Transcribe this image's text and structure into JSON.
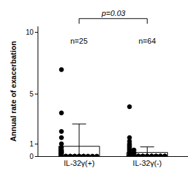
{
  "chart_data": {
    "type": "bar",
    "y_label": "Annual rate of exacerbation",
    "categories": [
      "IL-32γ(+)",
      "IL-32γ(-)"
    ],
    "values": [
      0.8,
      0.3
    ],
    "error": [
      1.8,
      0.45
    ],
    "points": [
      [
        7,
        3.5,
        2,
        1.5,
        1,
        0.7,
        0.5,
        0.4,
        0.3,
        0.2,
        0,
        0,
        0,
        0,
        0,
        0,
        0,
        0,
        0,
        0,
        0,
        0,
        0,
        0,
        0
      ],
      [
        4,
        1.5,
        1.2,
        1,
        0.9,
        0.8,
        0.7,
        0.6,
        0.5,
        0.5,
        0.4,
        0.3,
        0.3,
        0.2,
        0.2,
        0.1,
        0,
        0,
        0,
        0,
        0,
        0,
        0,
        0,
        0,
        0,
        0,
        0,
        0,
        0,
        0,
        0,
        0,
        0,
        0,
        0,
        0,
        0,
        0,
        0,
        0,
        0,
        0,
        0,
        0,
        0,
        0,
        0,
        0,
        0,
        0,
        0,
        0,
        0,
        0,
        0,
        0,
        0,
        0,
        0,
        0,
        0,
        0,
        0
      ]
    ],
    "annotations": {
      "comparison": "p=0.03",
      "groups": [
        "n=25",
        "n=64"
      ]
    },
    "color": "#ffffff",
    "marker": "triangle-open",
    "ylim": [
      0,
      10.5
    ],
    "yticks": [
      0,
      1,
      5,
      10
    ],
    "grid": false
  }
}
